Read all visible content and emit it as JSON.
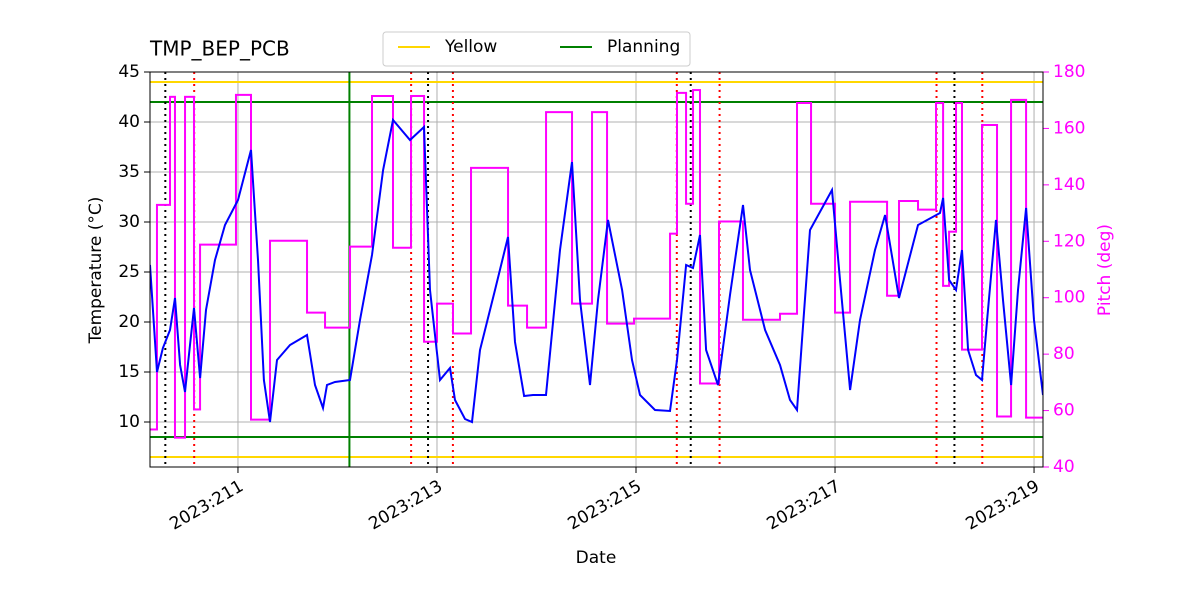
{
  "chart_data": {
    "type": "line",
    "title": "TMP_BEP_PCB",
    "xlabel": "Date",
    "ylabel": "Temperature (°C)",
    "y2label": "Pitch (deg)",
    "y2color": "#ff00ff",
    "grid": true,
    "legend": "upper center",
    "xlim": [
      210.116,
      219.09
    ],
    "xticks": [
      {
        "value": 211,
        "label": "2023:211"
      },
      {
        "value": 213,
        "label": "2023:213"
      },
      {
        "value": 215,
        "label": "2023:215"
      },
      {
        "value": 217,
        "label": "2023:217"
      },
      {
        "value": 219,
        "label": "2023:219"
      }
    ],
    "ylim": [
      5.5,
      45
    ],
    "yticks": [
      10,
      15,
      20,
      25,
      30,
      35,
      40,
      45
    ],
    "y2lim": [
      40,
      180
    ],
    "y2ticks": [
      40,
      60,
      80,
      100,
      120,
      140,
      160,
      180
    ],
    "limit_lines": [
      {
        "name": "Yellow",
        "color": "#ffd700",
        "values": [
          44,
          6.5
        ]
      },
      {
        "name": "Planning",
        "color": "#008000",
        "values": [
          42,
          8.5
        ]
      }
    ],
    "vlines": [
      {
        "color": "#008000",
        "style": "solid",
        "x": [
          212.12
        ]
      },
      {
        "color": "#000000",
        "style": "dotted",
        "x": [
          210.27,
          212.91,
          215.55,
          218.2
        ]
      },
      {
        "color": "#ff0000",
        "style": "dotted",
        "x": [
          210.56,
          212.74,
          213.16,
          215.41,
          215.84,
          218.02,
          218.48
        ]
      }
    ],
    "series": [
      {
        "color": "#0000ff",
        "x": [
          210.116,
          210.186,
          210.246,
          210.317,
          210.367,
          210.418,
          210.468,
          210.518,
          210.558,
          210.619,
          210.679,
          210.769,
          210.87,
          211.0,
          211.131,
          211.201,
          211.261,
          211.322,
          211.392,
          211.523,
          211.694,
          211.774,
          211.855,
          211.895,
          211.975,
          212.126,
          212.226,
          212.347,
          212.458,
          212.558,
          212.729,
          212.87,
          212.93,
          213.03,
          213.131,
          213.181,
          213.282,
          213.352,
          213.432,
          213.583,
          213.714,
          213.784,
          213.875,
          213.965,
          214.096,
          214.236,
          214.357,
          214.437,
          214.538,
          214.618,
          214.719,
          214.86,
          214.96,
          215.04,
          215.191,
          215.342,
          215.412,
          215.503,
          215.573,
          215.643,
          215.704,
          215.824,
          215.945,
          216.075,
          216.146,
          216.297,
          216.447,
          216.548,
          216.618,
          216.668,
          216.749,
          216.97,
          217.05,
          217.151,
          217.251,
          217.402,
          217.503,
          217.643,
          217.834,
          218.055,
          218.086,
          218.146,
          218.216,
          218.276,
          218.337,
          218.417,
          218.477,
          218.528,
          218.618,
          218.688,
          218.769,
          218.839,
          218.92,
          219.0,
          219.09
        ],
        "values": [
          25.7,
          15.0,
          17.4,
          19.2,
          22.4,
          15.7,
          13.0,
          17.7,
          21.4,
          14.4,
          21.2,
          26.2,
          29.7,
          32.2,
          37.2,
          26.2,
          14.2,
          10.0,
          16.2,
          17.7,
          18.7,
          13.7,
          11.4,
          13.7,
          14.0,
          14.2,
          20.2,
          26.7,
          35.2,
          40.2,
          38.2,
          39.5,
          23.2,
          14.2,
          15.4,
          12.2,
          10.3,
          10.0,
          17.2,
          23.2,
          28.5,
          18.0,
          12.6,
          12.7,
          12.7,
          27.2,
          36.0,
          22.2,
          13.7,
          22.2,
          30.2,
          23.2,
          16.2,
          12.7,
          11.2,
          11.1,
          16.2,
          25.7,
          25.4,
          28.7,
          17.2,
          13.7,
          22.7,
          31.7,
          25.2,
          19.2,
          15.7,
          12.2,
          11.2,
          18.2,
          29.2,
          33.2,
          24.2,
          13.2,
          20.2,
          27.2,
          30.7,
          22.4,
          29.7,
          30.9,
          32.4,
          24.2,
          23.2,
          27.2,
          17.2,
          14.7,
          14.2,
          20.2,
          30.2,
          22.2,
          13.7,
          23.2,
          31.4,
          20.2,
          12.7
        ]
      },
      {
        "color": "#ff00ff",
        "axis": "y2",
        "step": "post",
        "x": [
          210.116,
          210.186,
          210.317,
          210.367,
          210.468,
          210.558,
          210.619,
          210.98,
          211.131,
          211.322,
          211.694,
          211.875,
          212.126,
          212.347,
          212.558,
          212.739,
          212.87,
          213.0,
          213.161,
          213.342,
          213.714,
          213.905,
          214.096,
          214.357,
          214.558,
          214.709,
          214.98,
          215.342,
          215.412,
          215.503,
          215.573,
          215.643,
          215.834,
          216.075,
          216.447,
          216.618,
          216.759,
          217.0,
          217.151,
          217.523,
          217.643,
          217.834,
          218.015,
          218.086,
          218.146,
          218.216,
          218.276,
          218.477,
          218.628,
          218.769,
          218.92
        ],
        "values": [
          53.3,
          132.9,
          171.2,
          50.4,
          171.2,
          60.4,
          118.8,
          171.9,
          56.8,
          120.2,
          94.7,
          89.4,
          118.1,
          171.5,
          117.7,
          171.5,
          84.4,
          97.9,
          87.3,
          146.0,
          97.2,
          89.4,
          165.8,
          97.9,
          165.8,
          90.8,
          92.6,
          122.7,
          172.6,
          133.3,
          173.6,
          69.6,
          127.0,
          92.2,
          94.3,
          169.0,
          133.3,
          94.7,
          134.0,
          100.7,
          134.3,
          131.2,
          169.0,
          104.2,
          123.4,
          169.0,
          81.6,
          161.2,
          57.9,
          170.1,
          57.5
        ]
      }
    ]
  }
}
